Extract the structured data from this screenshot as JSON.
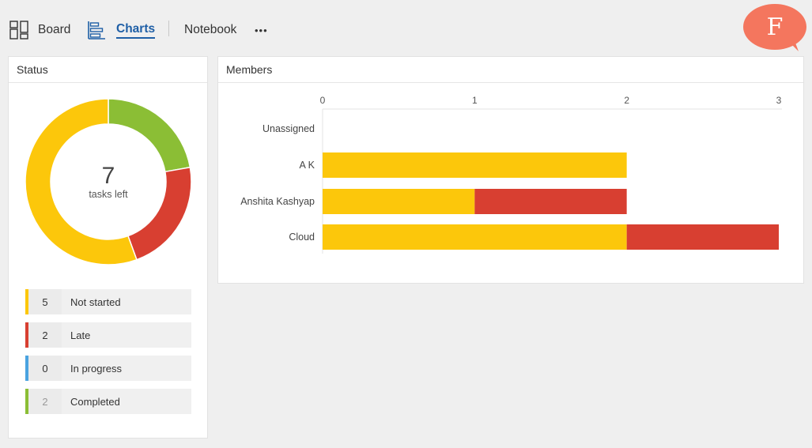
{
  "nav": {
    "board_label": "Board",
    "charts_label": "Charts",
    "notebook_label": "Notebook",
    "more_label": "•••",
    "avatar_letter": "F"
  },
  "status": {
    "title": "Status",
    "total": "7",
    "caption": "tasks left",
    "items": [
      {
        "count": "5",
        "label": "Not started",
        "color": "#fcc70b"
      },
      {
        "count": "2",
        "label": "Late",
        "color": "#d83f31"
      },
      {
        "count": "0",
        "label": "In progress",
        "color": "#4aa3e0"
      },
      {
        "count": "2",
        "label": "Completed",
        "color": "#8bbe35"
      }
    ]
  },
  "members": {
    "title": "Members"
  },
  "chart_data": [
    {
      "type": "pie",
      "categories": [
        "Not started",
        "Late",
        "In progress",
        "Completed"
      ],
      "values": [
        5,
        2,
        0,
        2
      ],
      "colors": [
        "#fcc70b",
        "#d83f31",
        "#4aa3e0",
        "#8bbe35"
      ]
    },
    {
      "type": "bar",
      "orientation": "horizontal",
      "stacked": true,
      "categories": [
        "Unassigned",
        "A K",
        "Anshita Kashyap",
        "Cloud"
      ],
      "xlim": [
        0,
        3
      ],
      "xticks": [
        "0",
        "1",
        "2",
        "3"
      ],
      "series": [
        {
          "values": [
            0,
            2,
            1,
            2
          ],
          "color": "#fcc70b"
        },
        {
          "values": [
            0,
            0,
            1,
            1
          ],
          "color": "#d83f31"
        }
      ]
    }
  ]
}
